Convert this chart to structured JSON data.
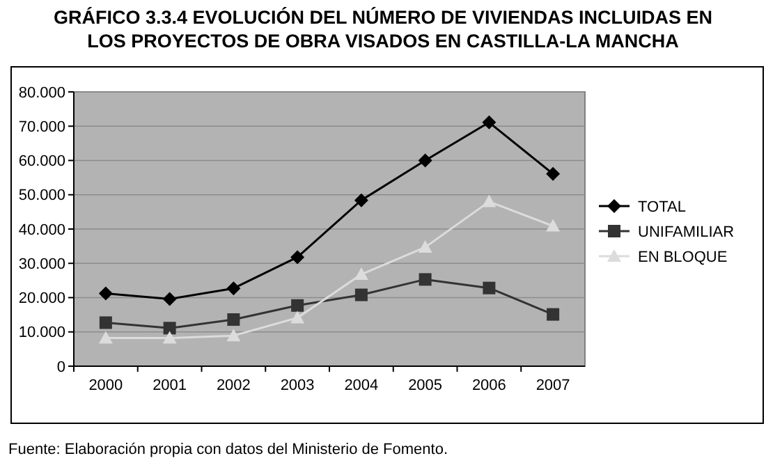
{
  "chart_data": {
    "type": "line",
    "title": "GRÁFICO 3.3.4 EVOLUCIÓN DEL NÚMERO DE VIVIENDAS INCLUIDAS EN LOS PROYECTOS DE OBRA VISADOS EN CASTILLA-LA MANCHA",
    "categories": [
      "2000",
      "2001",
      "2002",
      "2003",
      "2004",
      "2005",
      "2006",
      "2007"
    ],
    "series": [
      {
        "name": "TOTAL",
        "color": "#000000",
        "marker": "diamond",
        "values": [
          21200,
          19600,
          22700,
          31800,
          48400,
          60000,
          71100,
          56100
        ]
      },
      {
        "name": "UNIFAMILIAR",
        "color": "#333333",
        "marker": "square",
        "values": [
          12700,
          11100,
          13600,
          17700,
          20800,
          25300,
          22800,
          15100
        ]
      },
      {
        "name": "EN BLOQUE",
        "color": "#dcdcdc",
        "marker": "triangle",
        "values": [
          8200,
          8200,
          8900,
          14100,
          26800,
          34700,
          48000,
          40900
        ]
      }
    ],
    "ylim": [
      0,
      80000
    ],
    "yticks": [
      {
        "value": 0,
        "label": "0"
      },
      {
        "value": 10000,
        "label": "10.000"
      },
      {
        "value": 20000,
        "label": "20.000"
      },
      {
        "value": 30000,
        "label": "30.000"
      },
      {
        "value": 40000,
        "label": "40.000"
      },
      {
        "value": 50000,
        "label": "50.000"
      },
      {
        "value": 60000,
        "label": "60.000"
      },
      {
        "value": 70000,
        "label": "70.000"
      },
      {
        "value": 80000,
        "label": "80.000"
      }
    ],
    "grid": "y",
    "legend": "right",
    "annotations": [
      "Fuente: Elaboración propia con datos del Ministerio de Fomento."
    ]
  }
}
